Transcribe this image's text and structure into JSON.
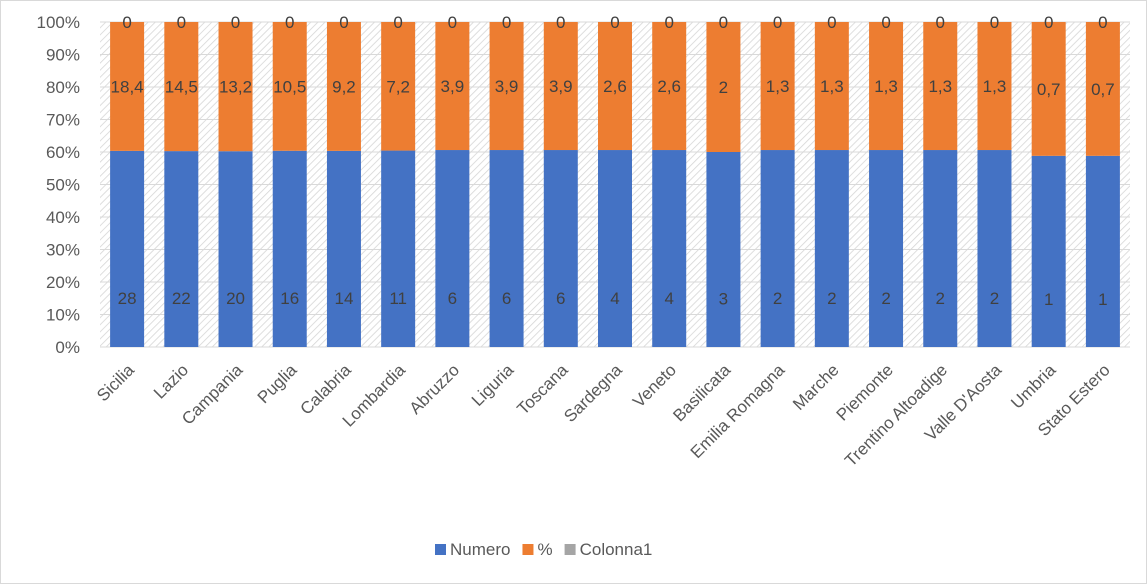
{
  "chart_data": {
    "type": "bar",
    "stacked": "percent",
    "categories": [
      "Sicilia",
      "Lazio",
      "Campania",
      "Puglia",
      "Calabria",
      "Lombardia",
      "Abruzzo",
      "Liguria",
      "Toscana",
      "Sardegna",
      "Veneto",
      "Basilicata",
      "Emilia Romagna",
      "Marche",
      "Piemonte",
      "Trentino Altoadige",
      "Valle D'Aosta",
      "Umbria",
      "Stato Estero"
    ],
    "series": [
      {
        "name": "Numero",
        "color": "#4472C4",
        "values": [
          28,
          22,
          20,
          16,
          14,
          11,
          6,
          6,
          6,
          4,
          4,
          3,
          2,
          2,
          2,
          2,
          2,
          1,
          1
        ],
        "labels": [
          "28",
          "22",
          "20",
          "16",
          "14",
          "11",
          "6",
          "6",
          "6",
          "4",
          "4",
          "3",
          "2",
          "2",
          "2",
          "2",
          "2",
          "1",
          "1"
        ]
      },
      {
        "name": "%",
        "color": "#ED7D31",
        "values": [
          18.4,
          14.5,
          13.2,
          10.5,
          9.2,
          7.2,
          3.9,
          3.9,
          3.9,
          2.6,
          2.6,
          2,
          1.3,
          1.3,
          1.3,
          1.3,
          1.3,
          0.7,
          0.7
        ],
        "labels": [
          "18,4",
          "14,5",
          "13,2",
          "10,5",
          "9,2",
          "7,2",
          "3,9",
          "3,9",
          "3,9",
          "2,6",
          "2,6",
          "2",
          "1,3",
          "1,3",
          "1,3",
          "1,3",
          "1,3",
          "0,7",
          "0,7"
        ]
      },
      {
        "name": "Colonna1",
        "color": "#A5A5A5",
        "values": [
          0,
          0,
          0,
          0,
          0,
          0,
          0,
          0,
          0,
          0,
          0,
          0,
          0,
          0,
          0,
          0,
          0,
          0,
          0
        ],
        "labels": [
          "0",
          "0",
          "0",
          "0",
          "0",
          "0",
          "0",
          "0",
          "0",
          "0",
          "0",
          "0",
          "0",
          "0",
          "0",
          "0",
          "0",
          "0",
          "0"
        ]
      }
    ],
    "yticks": [
      "0%",
      "10%",
      "20%",
      "30%",
      "40%",
      "50%",
      "60%",
      "70%",
      "80%",
      "90%",
      "100%"
    ],
    "ylim": [
      0,
      100
    ],
    "grid": true,
    "legend_position": "bottom",
    "title": "",
    "xlabel": "",
    "ylabel": ""
  }
}
